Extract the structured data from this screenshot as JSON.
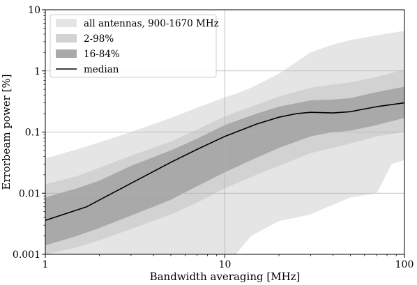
{
  "chart_data": {
    "type": "area",
    "title": "",
    "xlabel": "Bandwidth averaging [MHz]",
    "ylabel": "Errorbeam power [%]",
    "xscale": "log",
    "yscale": "log",
    "xlim": [
      1,
      100
    ],
    "ylim": [
      0.001,
      10
    ],
    "x_ticks": [
      {
        "value": 1,
        "label": "1"
      },
      {
        "value": 10,
        "label": "10"
      },
      {
        "value": 100,
        "label": "100"
      }
    ],
    "y_ticks": [
      {
        "value": 0.001,
        "label": "0.001"
      },
      {
        "value": 0.01,
        "label": "0.01"
      },
      {
        "value": 0.1,
        "label": "0.1"
      },
      {
        "value": 1,
        "label": "1"
      },
      {
        "value": 10,
        "label": "10"
      }
    ],
    "grid": true,
    "legend_position": "upper-left",
    "series": [
      {
        "name": "all antennas, 900-1670 MHz",
        "kind": "band",
        "color": "#e5e5e5",
        "points": [
          [
            1,
            0.001,
            0.037
          ],
          [
            1.5,
            0.001,
            0.052
          ],
          [
            2,
            0.001,
            0.068
          ],
          [
            3,
            0.001,
            0.1
          ],
          [
            5,
            0.001,
            0.17
          ],
          [
            7,
            0.001,
            0.25
          ],
          [
            10,
            0.001,
            0.37
          ],
          [
            11.5,
            0.001,
            0.42
          ],
          [
            14,
            0.002,
            0.53
          ],
          [
            20,
            0.0035,
            0.9
          ],
          [
            25,
            0.004,
            1.4
          ],
          [
            30,
            0.0045,
            2.0
          ],
          [
            40,
            0.0065,
            2.7
          ],
          [
            50,
            0.0085,
            3.2
          ],
          [
            70,
            0.01,
            3.8
          ],
          [
            85,
            0.03,
            4.2
          ],
          [
            100,
            0.035,
            4.5
          ]
        ]
      },
      {
        "name": "2-98%",
        "kind": "band",
        "color": "#d2d2d2",
        "points": [
          [
            1,
            0.001,
            0.014
          ],
          [
            1.5,
            0.0013,
            0.019
          ],
          [
            2,
            0.0017,
            0.026
          ],
          [
            3,
            0.0026,
            0.041
          ],
          [
            5,
            0.0045,
            0.07
          ],
          [
            7,
            0.007,
            0.11
          ],
          [
            10,
            0.012,
            0.18
          ],
          [
            15,
            0.02,
            0.28
          ],
          [
            20,
            0.028,
            0.38
          ],
          [
            30,
            0.045,
            0.53
          ],
          [
            40,
            0.055,
            0.6
          ],
          [
            50,
            0.065,
            0.65
          ],
          [
            70,
            0.085,
            0.8
          ],
          [
            100,
            0.1,
            1.05
          ]
        ]
      },
      {
        "name": "16-84%",
        "kind": "band",
        "color": "#a9a9a9",
        "points": [
          [
            1,
            0.0014,
            0.0085
          ],
          [
            1.5,
            0.002,
            0.012
          ],
          [
            2,
            0.0027,
            0.016
          ],
          [
            3,
            0.0043,
            0.028
          ],
          [
            5,
            0.0078,
            0.05
          ],
          [
            7,
            0.013,
            0.078
          ],
          [
            10,
            0.022,
            0.13
          ],
          [
            15,
            0.038,
            0.2
          ],
          [
            20,
            0.055,
            0.26
          ],
          [
            30,
            0.085,
            0.33
          ],
          [
            40,
            0.1,
            0.34
          ],
          [
            50,
            0.105,
            0.36
          ],
          [
            70,
            0.13,
            0.45
          ],
          [
            100,
            0.17,
            0.55
          ]
        ]
      },
      {
        "name": "median",
        "kind": "line",
        "color": "#000000",
        "points": [
          [
            1,
            0.0036
          ],
          [
            1.7,
            0.006
          ],
          [
            3,
            0.0145
          ],
          [
            5,
            0.032
          ],
          [
            7,
            0.052
          ],
          [
            10,
            0.085
          ],
          [
            15,
            0.135
          ],
          [
            20,
            0.175
          ],
          [
            25,
            0.2
          ],
          [
            30,
            0.21
          ],
          [
            40,
            0.205
          ],
          [
            50,
            0.215
          ],
          [
            70,
            0.26
          ],
          [
            100,
            0.3
          ]
        ]
      }
    ]
  }
}
